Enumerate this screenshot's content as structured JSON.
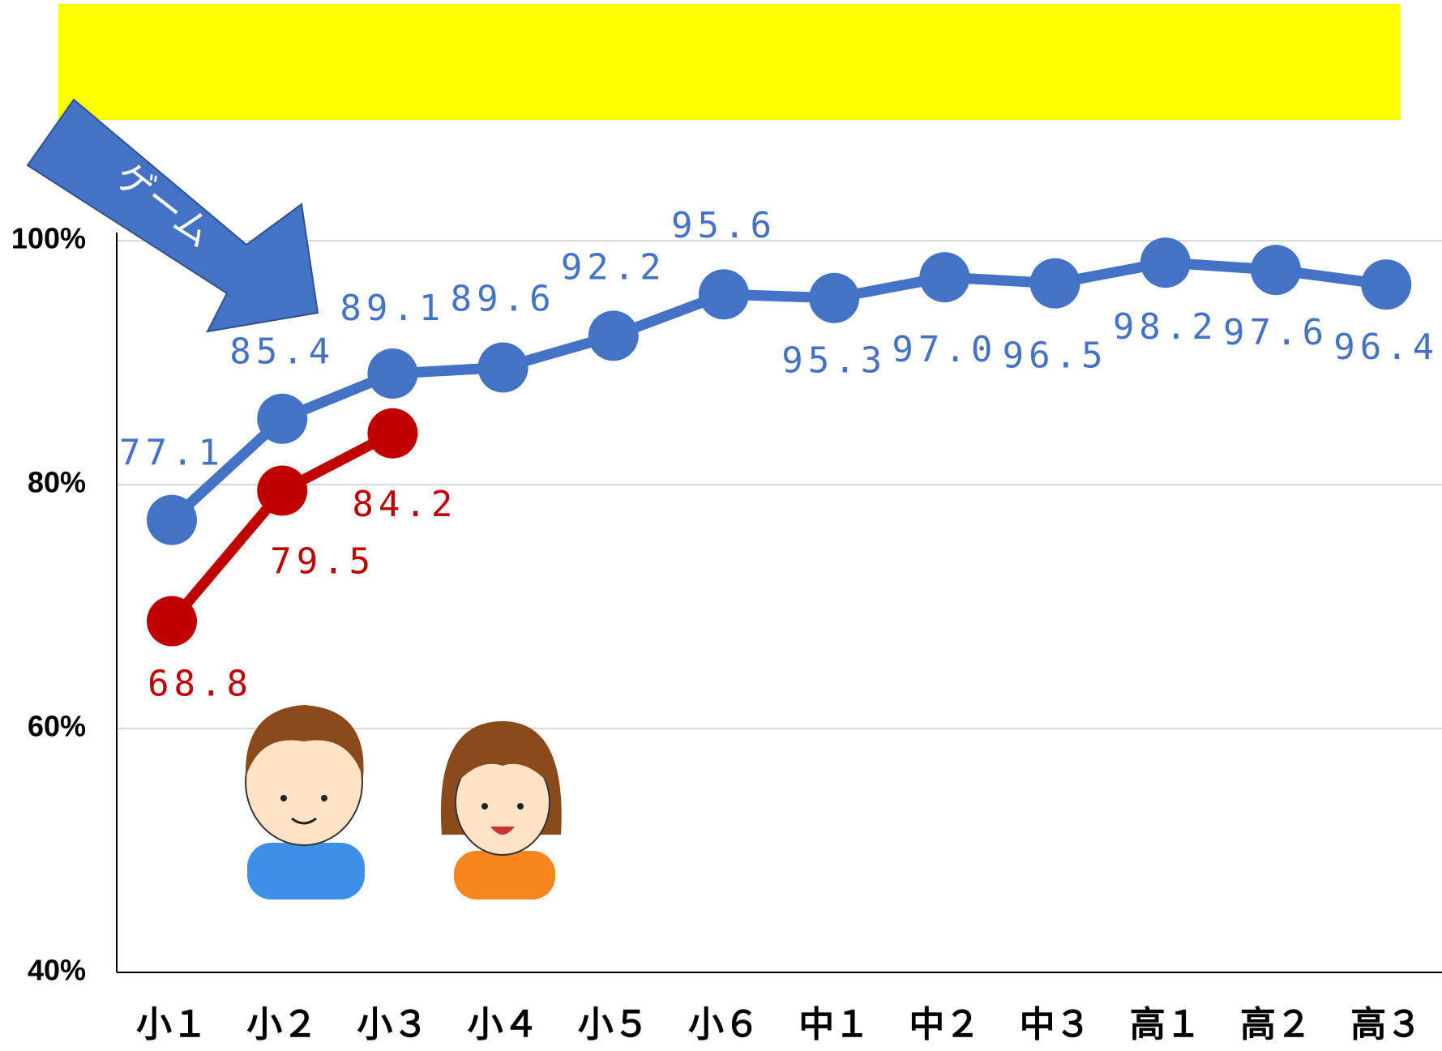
{
  "chart_data": {
    "type": "line",
    "categories": [
      "小１",
      "小２",
      "小３",
      "小４",
      "小５",
      "小６",
      "中１",
      "中２",
      "中３",
      "高１",
      "高２",
      "高３"
    ],
    "series": [
      {
        "color": "#4472c4",
        "values": [
          77.1,
          85.4,
          89.1,
          89.6,
          92.2,
          95.6,
          95.3,
          97.0,
          96.5,
          98.2,
          97.6,
          96.4
        ]
      },
      {
        "color": "#c00000",
        "values": [
          68.8,
          79.5,
          84.2,
          null,
          null,
          null,
          null,
          null,
          null,
          null,
          null,
          null
        ]
      }
    ],
    "value_labels": [
      [
        "77.1",
        "85.4",
        "89.1",
        "89.6",
        "92.2",
        "95.6",
        "95.3",
        "97.0",
        "96.5",
        "98.2",
        "97.6",
        "96.4"
      ],
      [
        "68.8",
        "79.5",
        "84.2",
        null,
        null,
        null,
        null,
        null,
        null,
        null,
        null,
        null
      ]
    ],
    "ylim": [
      40,
      100
    ],
    "yticks": [
      {
        "value": 40,
        "label": "40%"
      },
      {
        "value": 60,
        "label": "60%"
      },
      {
        "value": 80,
        "label": "80%"
      },
      {
        "value": 100,
        "label": "100%"
      }
    ],
    "grid": true,
    "annotations": [
      "ゲーム"
    ]
  }
}
